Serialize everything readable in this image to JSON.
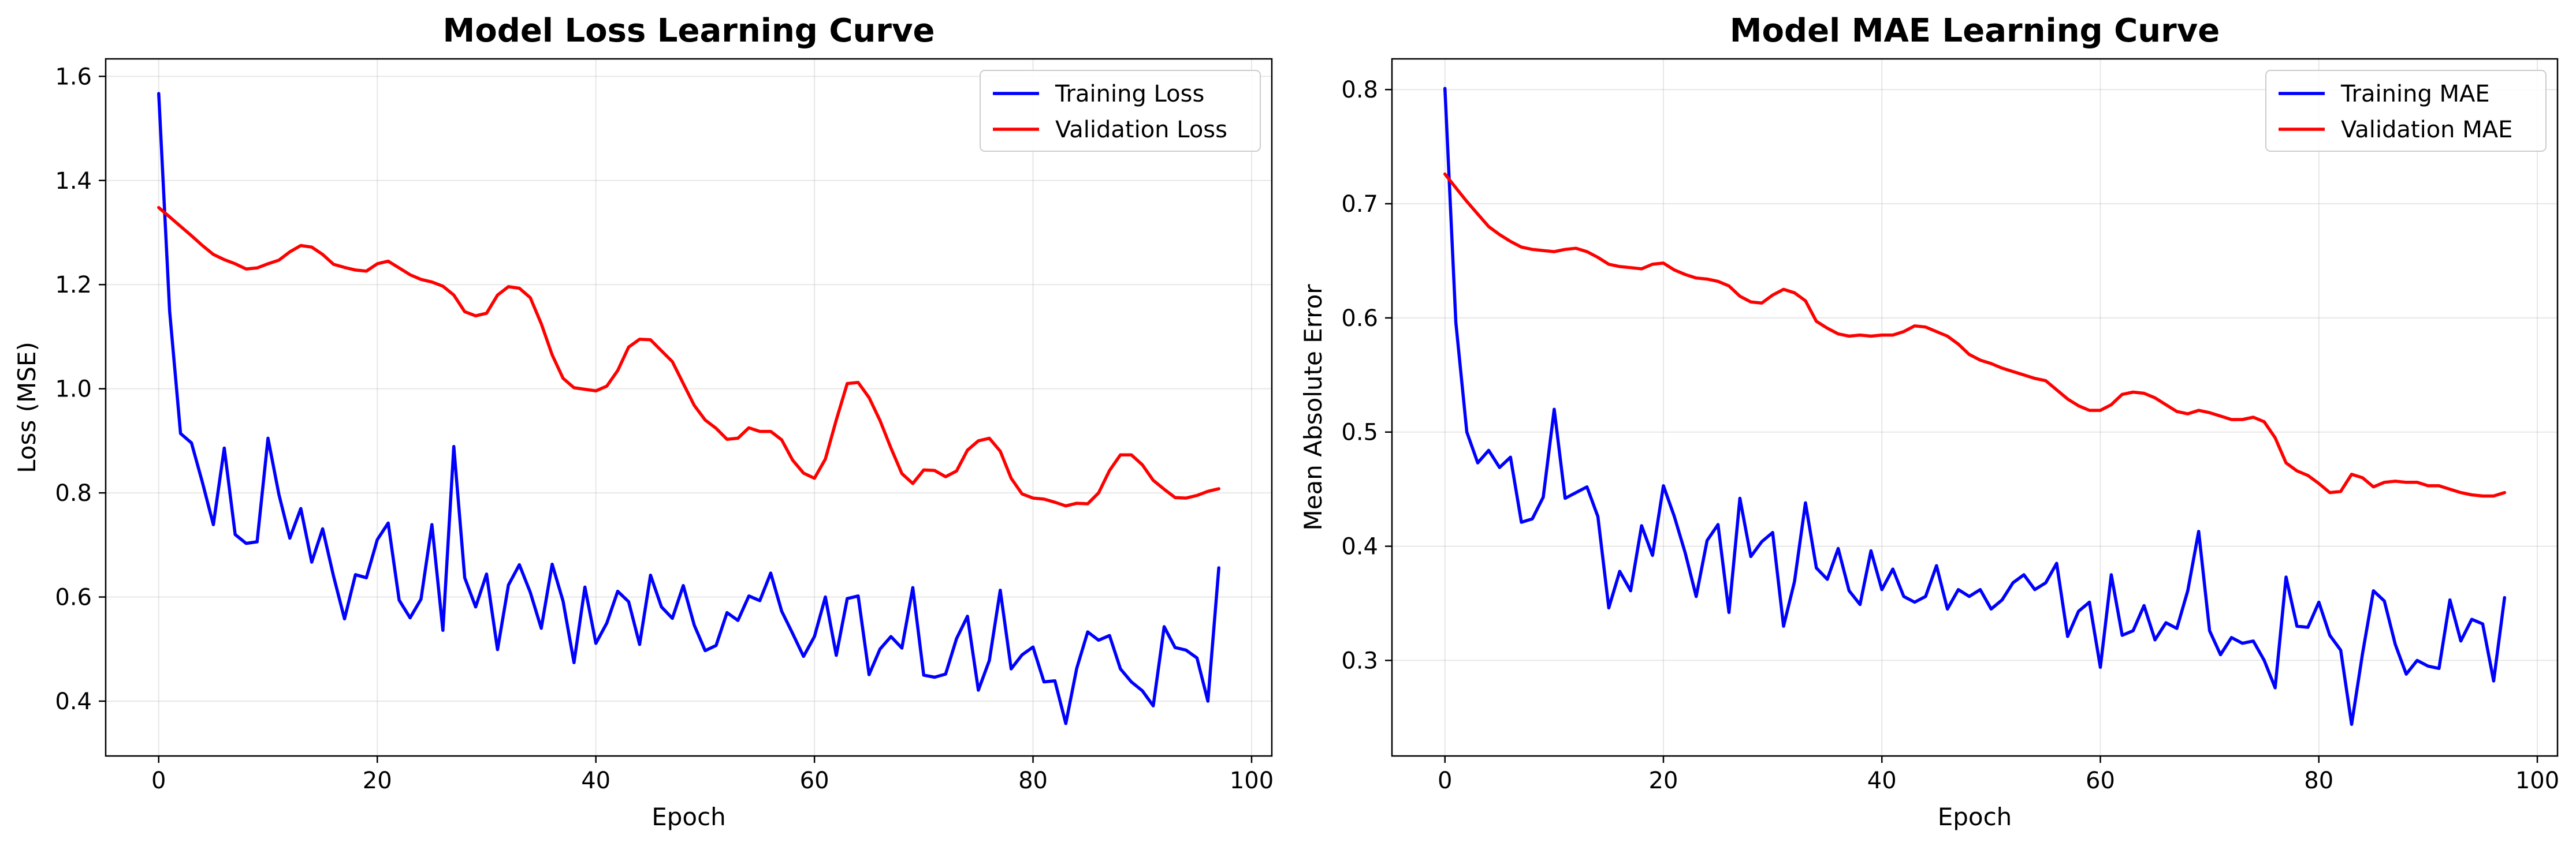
{
  "figure": {
    "background": "#ffffff",
    "colors": {
      "training": "#0000ff",
      "validation": "#ff0000",
      "grid": "#b0b0b0",
      "axis": "#000000"
    }
  },
  "chart_data": [
    {
      "type": "line",
      "title": "Model Loss Learning Curve",
      "xlabel": "Epoch",
      "ylabel": "Loss (MSE)",
      "xlim": [
        -4.85,
        101.85
      ],
      "ylim": [
        0.2947,
        1.6336
      ],
      "xticks": [
        0,
        20,
        40,
        60,
        80,
        100
      ],
      "yticks": [
        0.4,
        0.6,
        0.8,
        1.0,
        1.2,
        1.4,
        1.6
      ],
      "xtick_labels": [
        "0",
        "20",
        "40",
        "60",
        "80",
        "100"
      ],
      "ytick_labels": [
        "0.4",
        "0.6",
        "0.8",
        "1.0",
        "1.2",
        "1.4",
        "1.6"
      ],
      "grid": true,
      "legend": "upper right",
      "x": [
        0,
        1,
        2,
        3,
        4,
        5,
        6,
        7,
        8,
        9,
        10,
        11,
        12,
        13,
        14,
        15,
        16,
        17,
        18,
        19,
        20,
        21,
        22,
        23,
        24,
        25,
        26,
        27,
        28,
        29,
        30,
        31,
        32,
        33,
        34,
        35,
        36,
        37,
        38,
        39,
        40,
        41,
        42,
        43,
        44,
        45,
        46,
        47,
        48,
        49,
        50,
        51,
        52,
        53,
        54,
        55,
        56,
        57,
        58,
        59,
        60,
        61,
        62,
        63,
        64,
        65,
        66,
        67,
        68,
        69,
        70,
        71,
        72,
        73,
        74,
        75,
        76,
        77,
        78,
        79,
        80,
        81,
        82,
        83,
        84,
        85,
        86,
        87,
        88,
        89,
        90,
        91,
        92,
        93,
        94,
        95,
        96,
        97
      ],
      "series": [
        {
          "name": "Training Loss",
          "color": "#0000ff",
          "values": [
            1.567,
            1.149,
            0.914,
            0.896,
            0.82,
            0.739,
            0.886,
            0.72,
            0.703,
            0.706,
            0.905,
            0.797,
            0.713,
            0.77,
            0.667,
            0.731,
            0.64,
            0.558,
            0.643,
            0.637,
            0.71,
            0.742,
            0.594,
            0.56,
            0.596,
            0.739,
            0.536,
            0.889,
            0.637,
            0.581,
            0.644,
            0.499,
            0.623,
            0.662,
            0.609,
            0.54,
            0.663,
            0.592,
            0.474,
            0.619,
            0.511,
            0.55,
            0.611,
            0.591,
            0.509,
            0.642,
            0.581,
            0.559,
            0.622,
            0.546,
            0.497,
            0.507,
            0.57,
            0.555,
            0.602,
            0.593,
            0.646,
            0.573,
            0.53,
            0.486,
            0.524,
            0.6,
            0.488,
            0.597,
            0.602,
            0.451,
            0.5,
            0.524,
            0.502,
            0.618,
            0.45,
            0.446,
            0.452,
            0.52,
            0.563,
            0.421,
            0.478,
            0.613,
            0.462,
            0.489,
            0.504,
            0.437,
            0.439,
            0.357,
            0.463,
            0.533,
            0.517,
            0.526,
            0.462,
            0.437,
            0.42,
            0.391,
            0.543,
            0.503,
            0.498,
            0.483,
            0.4,
            0.656
          ]
        },
        {
          "name": "Validation Loss",
          "color": "#ff0000",
          "values": [
            1.348,
            1.33,
            1.312,
            1.294,
            1.275,
            1.258,
            1.248,
            1.24,
            1.23,
            1.232,
            1.24,
            1.247,
            1.263,
            1.275,
            1.272,
            1.258,
            1.239,
            1.233,
            1.228,
            1.226,
            1.24,
            1.245,
            1.232,
            1.219,
            1.21,
            1.205,
            1.197,
            1.18,
            1.148,
            1.14,
            1.145,
            1.18,
            1.196,
            1.193,
            1.175,
            1.125,
            1.065,
            1.02,
            1.002,
            0.999,
            0.996,
            1.005,
            1.035,
            1.08,
            1.095,
            1.094,
            1.073,
            1.052,
            1.01,
            0.968,
            0.94,
            0.924,
            0.903,
            0.905,
            0.925,
            0.918,
            0.918,
            0.902,
            0.863,
            0.838,
            0.828,
            0.865,
            0.94,
            1.01,
            1.012,
            0.983,
            0.939,
            0.886,
            0.837,
            0.818,
            0.844,
            0.843,
            0.831,
            0.842,
            0.882,
            0.9,
            0.905,
            0.88,
            0.828,
            0.798,
            0.79,
            0.788,
            0.782,
            0.775,
            0.78,
            0.779,
            0.8,
            0.843,
            0.873,
            0.873,
            0.854,
            0.824,
            0.807,
            0.791,
            0.79,
            0.795,
            0.803,
            0.808
          ]
        }
      ]
    },
    {
      "type": "line",
      "title": "Model MAE Learning Curve",
      "xlabel": "Epoch",
      "ylabel": "Mean Absolute Error",
      "xlim": [
        -4.85,
        101.85
      ],
      "ylim": [
        0.2163,
        0.8269
      ],
      "xticks": [
        0,
        20,
        40,
        60,
        80,
        100
      ],
      "yticks": [
        0.3,
        0.4,
        0.5,
        0.6,
        0.7,
        0.8
      ],
      "xtick_labels": [
        "0",
        "20",
        "40",
        "60",
        "80",
        "100"
      ],
      "ytick_labels": [
        "0.3",
        "0.4",
        "0.5",
        "0.6",
        "0.7",
        "0.8"
      ],
      "grid": true,
      "legend": "upper right",
      "x": [
        0,
        1,
        2,
        3,
        4,
        5,
        6,
        7,
        8,
        9,
        10,
        11,
        12,
        13,
        14,
        15,
        16,
        17,
        18,
        19,
        20,
        21,
        22,
        23,
        24,
        25,
        26,
        27,
        28,
        29,
        30,
        31,
        32,
        33,
        34,
        35,
        36,
        37,
        38,
        39,
        40,
        41,
        42,
        43,
        44,
        45,
        46,
        47,
        48,
        49,
        50,
        51,
        52,
        53,
        54,
        55,
        56,
        57,
        58,
        59,
        60,
        61,
        62,
        63,
        64,
        65,
        66,
        67,
        68,
        69,
        70,
        71,
        72,
        73,
        74,
        75,
        76,
        77,
        78,
        79,
        80,
        81,
        82,
        83,
        84,
        85,
        86,
        87,
        88,
        89,
        90,
        91,
        92,
        93,
        94,
        95,
        96,
        97
      ],
      "series": [
        {
          "name": "Training MAE",
          "color": "#0000ff",
          "values": [
            0.801,
            0.596,
            0.5,
            0.473,
            0.484,
            0.469,
            0.478,
            0.421,
            0.424,
            0.443,
            0.52,
            0.442,
            0.447,
            0.452,
            0.426,
            0.346,
            0.378,
            0.361,
            0.418,
            0.392,
            0.453,
            0.426,
            0.394,
            0.356,
            0.405,
            0.419,
            0.342,
            0.442,
            0.391,
            0.404,
            0.412,
            0.33,
            0.369,
            0.438,
            0.381,
            0.371,
            0.398,
            0.361,
            0.349,
            0.396,
            0.362,
            0.38,
            0.356,
            0.351,
            0.356,
            0.383,
            0.345,
            0.362,
            0.356,
            0.362,
            0.345,
            0.353,
            0.368,
            0.375,
            0.362,
            0.368,
            0.385,
            0.321,
            0.343,
            0.351,
            0.294,
            0.375,
            0.322,
            0.326,
            0.348,
            0.318,
            0.333,
            0.328,
            0.361,
            0.413,
            0.326,
            0.305,
            0.32,
            0.315,
            0.317,
            0.3,
            0.276,
            0.373,
            0.33,
            0.329,
            0.351,
            0.322,
            0.309,
            0.244,
            0.306,
            0.361,
            0.352,
            0.314,
            0.288,
            0.3,
            0.295,
            0.293,
            0.353,
            0.317,
            0.336,
            0.332,
            0.282,
            0.355
          ]
        },
        {
          "name": "Validation MAE",
          "color": "#ff0000",
          "values": [
            0.726,
            0.714,
            0.702,
            0.691,
            0.68,
            0.673,
            0.667,
            0.662,
            0.66,
            0.659,
            0.658,
            0.66,
            0.661,
            0.658,
            0.653,
            0.647,
            0.645,
            0.644,
            0.643,
            0.647,
            0.648,
            0.642,
            0.638,
            0.635,
            0.634,
            0.632,
            0.628,
            0.619,
            0.614,
            0.613,
            0.62,
            0.625,
            0.622,
            0.615,
            0.597,
            0.591,
            0.586,
            0.584,
            0.585,
            0.584,
            0.585,
            0.585,
            0.588,
            0.593,
            0.592,
            0.588,
            0.584,
            0.577,
            0.568,
            0.563,
            0.56,
            0.556,
            0.553,
            0.55,
            0.547,
            0.545,
            0.537,
            0.529,
            0.523,
            0.519,
            0.519,
            0.524,
            0.533,
            0.535,
            0.534,
            0.53,
            0.524,
            0.518,
            0.516,
            0.519,
            0.517,
            0.514,
            0.511,
            0.511,
            0.513,
            0.509,
            0.495,
            0.473,
            0.466,
            0.462,
            0.455,
            0.447,
            0.448,
            0.463,
            0.46,
            0.452,
            0.456,
            0.457,
            0.456,
            0.456,
            0.453,
            0.453,
            0.45,
            0.447,
            0.445,
            0.444,
            0.444,
            0.447
          ]
        }
      ]
    }
  ]
}
